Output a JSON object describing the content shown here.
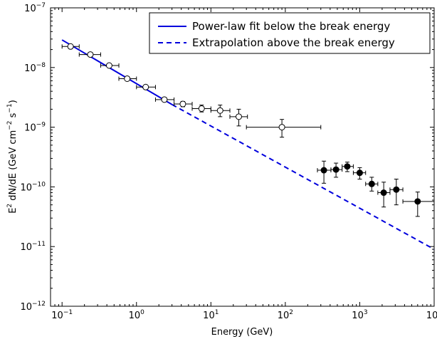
{
  "chart_data": {
    "type": "scatter",
    "xlabel": "Energy (GeV)",
    "ylabel_parts": [
      "E",
      "2",
      " dN/dE (GeV cm",
      "−2",
      " s",
      "−1",
      ")"
    ],
    "xscale": "log",
    "yscale": "log",
    "xlim": [
      0.07,
      10000
    ],
    "ylim": [
      1e-12,
      1e-07
    ],
    "x_ticks": [
      {
        "value": 0.1,
        "base": "10",
        "exp": "−1"
      },
      {
        "value": 1,
        "base": "10",
        "exp": "0"
      },
      {
        "value": 10,
        "base": "10",
        "exp": "1"
      },
      {
        "value": 100,
        "base": "10",
        "exp": "2"
      },
      {
        "value": 1000,
        "base": "10",
        "exp": "3"
      },
      {
        "value": 10000,
        "base": "10",
        "exp": "4"
      }
    ],
    "y_ticks": [
      {
        "value": 1e-12,
        "base": "10",
        "exp": "−12"
      },
      {
        "value": 1e-11,
        "base": "10",
        "exp": "−11"
      },
      {
        "value": 1e-10,
        "base": "10",
        "exp": "−10"
      },
      {
        "value": 1e-09,
        "base": "10",
        "exp": "−9"
      },
      {
        "value": 1e-08,
        "base": "10",
        "exp": "−8"
      },
      {
        "value": 1e-07,
        "base": "10",
        "exp": "−7"
      }
    ],
    "legend_position": "top-right",
    "series": [
      {
        "name": "Power-law fit below the break energy",
        "kind": "line",
        "style": "solid",
        "color": "#0000dd",
        "x": [
          0.1,
          3
        ],
        "y": [
          2.9e-08,
          2.4e-09
        ]
      },
      {
        "name": "Extrapolation above the break energy",
        "kind": "line",
        "style": "dashed",
        "color": "#0000dd",
        "x": [
          3,
          10000
        ],
        "y": [
          2.4e-09,
          9e-12
        ]
      },
      {
        "kind": "points",
        "marker": "open-circle",
        "points": [
          {
            "x": 0.13,
            "y": 2.25e-08,
            "xerr": [
              0.1,
              0.17
            ],
            "yerr": [
              2.08e-08,
              2.42e-08
            ]
          },
          {
            "x": 0.24,
            "y": 1.65e-08,
            "xerr": [
              0.17,
              0.33
            ],
            "yerr": [
              1.55e-08,
              1.76e-08
            ]
          },
          {
            "x": 0.43,
            "y": 1.08e-08,
            "xerr": [
              0.33,
              0.58
            ],
            "yerr": [
              1.02e-08,
              1.14e-08
            ]
          },
          {
            "x": 0.75,
            "y": 6.5e-09,
            "xerr": [
              0.58,
              1.0
            ],
            "yerr": [
              6.1e-09,
              6.9e-09
            ]
          },
          {
            "x": 1.33,
            "y": 4.7e-09,
            "xerr": [
              1.0,
              1.8
            ],
            "yerr": [
              4.45e-09,
              4.95e-09
            ]
          },
          {
            "x": 2.37,
            "y": 2.9e-09,
            "xerr": [
              1.8,
              3.2
            ],
            "yerr": [
              2.7e-09,
              3.1e-09
            ]
          },
          {
            "x": 4.2,
            "y": 2.45e-09,
            "xerr": [
              3.2,
              5.6
            ],
            "yerr": [
              2.2e-09,
              2.7e-09
            ]
          },
          {
            "x": 7.5,
            "y": 2.05e-09,
            "xerr": [
              5.6,
              10
            ],
            "yerr": [
              1.8e-09,
              2.35e-09
            ]
          },
          {
            "x": 13.3,
            "y": 1.9e-09,
            "xerr": [
              10,
              18
            ],
            "yerr": [
              1.5e-09,
              2.35e-09
            ]
          },
          {
            "x": 23.7,
            "y": 1.5e-09,
            "xerr": [
              18,
              31
            ],
            "yerr": [
              1.05e-09,
              2e-09
            ]
          },
          {
            "x": 90,
            "y": 1e-09,
            "xerr": [
              30,
              300
            ],
            "yerr": [
              6.8e-10,
              1.35e-09
            ]
          }
        ]
      },
      {
        "kind": "points",
        "marker": "filled-circle",
        "points": [
          {
            "x": 330,
            "y": 1.9e-10,
            "xerr": [
              270,
              410
            ],
            "yerr": [
              1.15e-10,
              2.7e-10
            ]
          },
          {
            "x": 480,
            "y": 1.95e-10,
            "xerr": [
              410,
              580
            ],
            "yerr": [
              1.45e-10,
              2.5e-10
            ]
          },
          {
            "x": 680,
            "y": 2.2e-10,
            "xerr": [
              580,
              820
            ],
            "yerr": [
              1.8e-10,
              2.6e-10
            ]
          },
          {
            "x": 1000,
            "y": 1.72e-10,
            "xerr": [
              820,
              1200
            ],
            "yerr": [
              1.35e-10,
              2.1e-10
            ]
          },
          {
            "x": 1450,
            "y": 1.12e-10,
            "xerr": [
              1200,
              1750
            ],
            "yerr": [
              8.5e-11,
              1.45e-10
            ]
          },
          {
            "x": 2100,
            "y": 8e-11,
            "xerr": [
              1750,
              2550
            ],
            "yerr": [
              4.6e-11,
              1.2e-10
            ]
          },
          {
            "x": 3100,
            "y": 9e-11,
            "xerr": [
              2550,
              3800
            ],
            "yerr": [
              5e-11,
              1.35e-10
            ]
          },
          {
            "x": 6000,
            "y": 5.7e-11,
            "xerr": [
              3800,
              10000
            ],
            "yerr": [
              3.2e-11,
              8.2e-11
            ]
          }
        ]
      }
    ]
  }
}
